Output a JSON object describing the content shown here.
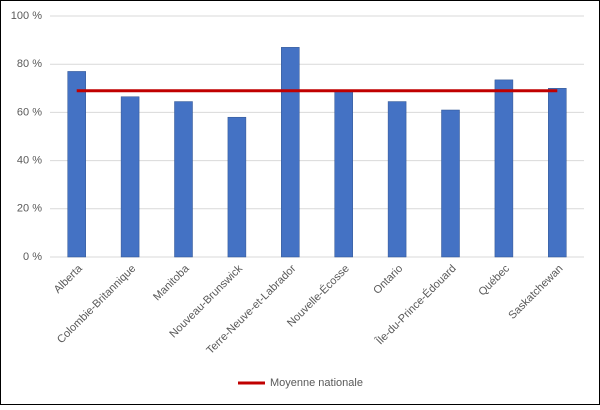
{
  "chart_data": {
    "type": "bar",
    "categories": [
      "Alberta",
      "Colombie-Britannique",
      "Manitoba",
      "Nouveau-Brunswick",
      "Terre-Neuve-et-Labrador",
      "Nouvelle-Écosse",
      "Ontario",
      "Île-du-Prince-Édouard",
      "Québec",
      "Saskatchewan"
    ],
    "values": [
      77,
      66.5,
      64.5,
      58,
      87,
      69,
      64.5,
      61,
      73.5,
      70
    ],
    "color": "#4472c4",
    "reference_line": {
      "name": "Moyenne nationale",
      "value": 69,
      "color": "#c00000"
    },
    "ylim": [
      0,
      100
    ],
    "yticks": [
      {
        "value": 0,
        "label": "0 %"
      },
      {
        "value": 20,
        "label": "20 %"
      },
      {
        "value": 40,
        "label": "40 %"
      },
      {
        "value": 60,
        "label": "60 %"
      },
      {
        "value": 80,
        "label": "80 %"
      },
      {
        "value": 100,
        "label": "100 %"
      }
    ],
    "grid": true,
    "legend": "bottom"
  }
}
